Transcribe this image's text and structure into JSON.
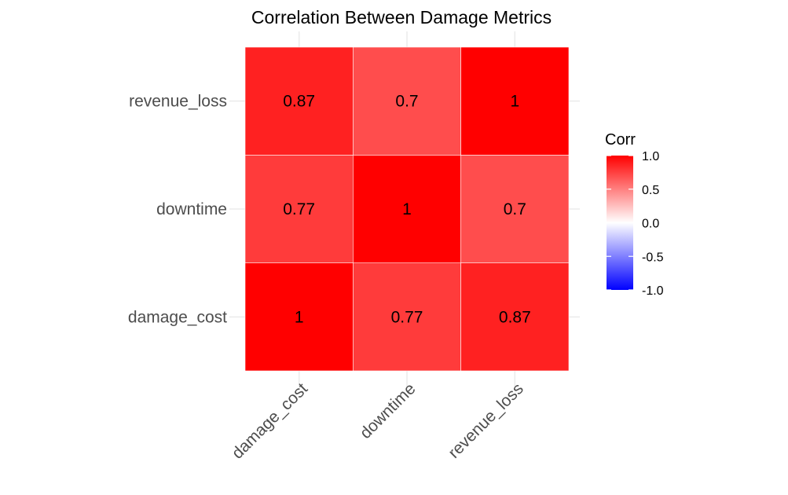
{
  "chart_data": {
    "type": "heatmap",
    "title": "Correlation Between Damage Metrics",
    "x_categories": [
      "damage_cost",
      "downtime",
      "revenue_loss"
    ],
    "y_categories": [
      "damage_cost",
      "downtime",
      "revenue_loss"
    ],
    "matrix": [
      [
        1,
        0.77,
        0.87
      ],
      [
        0.77,
        1,
        0.7
      ],
      [
        0.87,
        0.7,
        1
      ]
    ],
    "cell_labels": [
      [
        "1",
        "0.77",
        "0.87"
      ],
      [
        "0.77",
        "1",
        "0.7"
      ],
      [
        "0.87",
        "0.7",
        "1"
      ]
    ],
    "legend": {
      "title": "Corr",
      "ticks": [
        "1.0",
        "0.5",
        "0.0",
        "-0.5",
        "-1.0"
      ],
      "tick_values": [
        1,
        0.5,
        0,
        -0.5,
        -1
      ],
      "range": [
        -1,
        1
      ],
      "placement": "right"
    },
    "colors": {
      "low": "#0000ff",
      "mid": "#ffffff",
      "high": "#ff0000",
      "grid": "#ebebeb",
      "cell_border": "#ffffff"
    },
    "grid": true
  }
}
